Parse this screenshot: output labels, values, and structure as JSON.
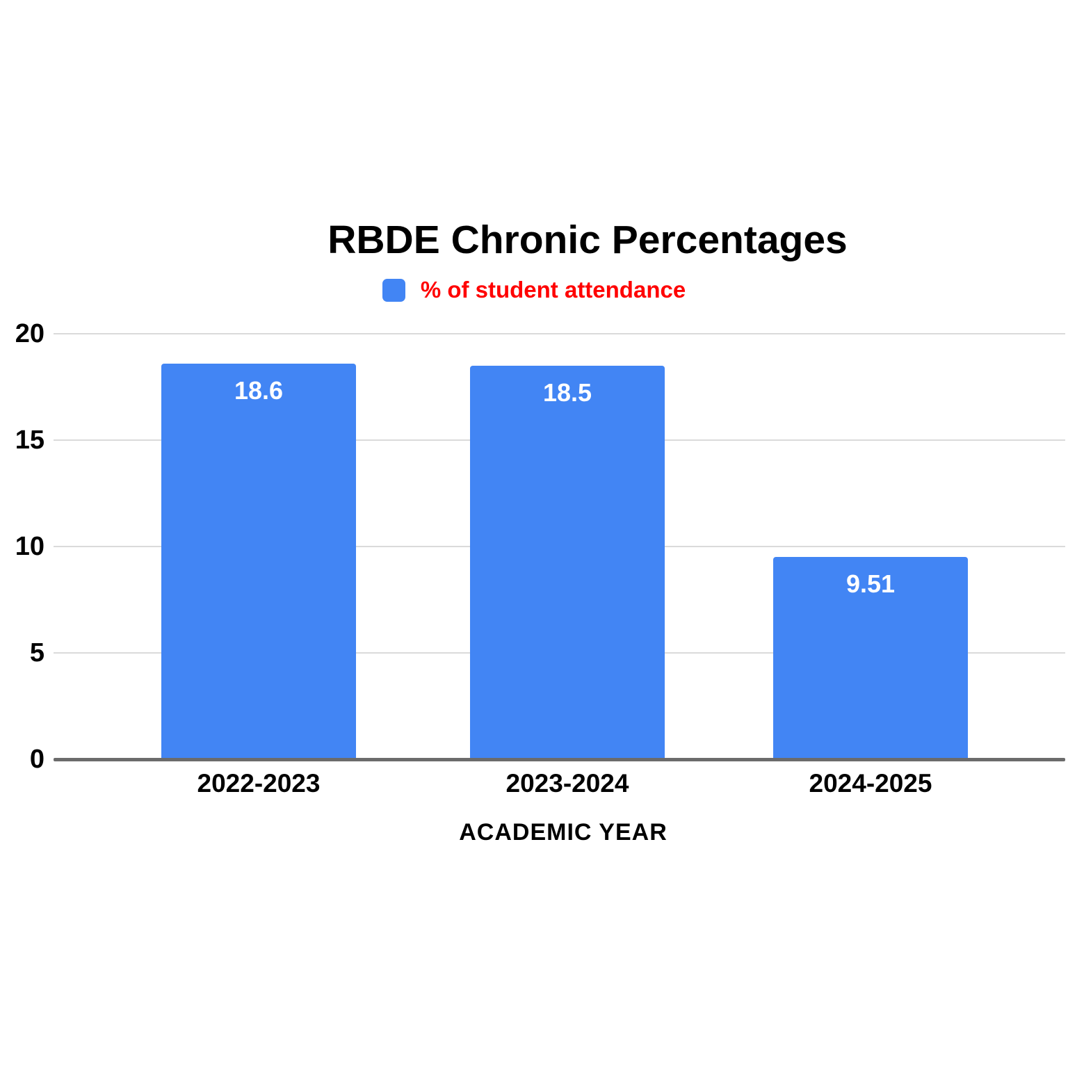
{
  "chart_data": {
    "type": "bar",
    "title": "RBDE Chronic Percentages",
    "categories": [
      "2022-2023",
      "2023-2024",
      "2024-2025"
    ],
    "series": [
      {
        "name": "% of student attendance",
        "values": [
          18.6,
          18.5,
          9.51
        ]
      }
    ],
    "value_labels": [
      "18.6",
      "18.5",
      "9.51"
    ],
    "xlabel": "ACADEMIC YEAR",
    "ylabel": "",
    "ylim": [
      0,
      20
    ],
    "yticks": [
      0,
      5,
      10,
      15,
      20
    ],
    "grid": true,
    "legend_position": "top",
    "colors": {
      "bar": "#4285F4",
      "legend_text": "#FF0000",
      "title_text": "#000000",
      "axis_text": "#000000",
      "gridline": "#DADADA",
      "axis_line": "#6B6B6B",
      "bar_label": "#FFFFFF",
      "background": "#FFFFFF"
    }
  }
}
